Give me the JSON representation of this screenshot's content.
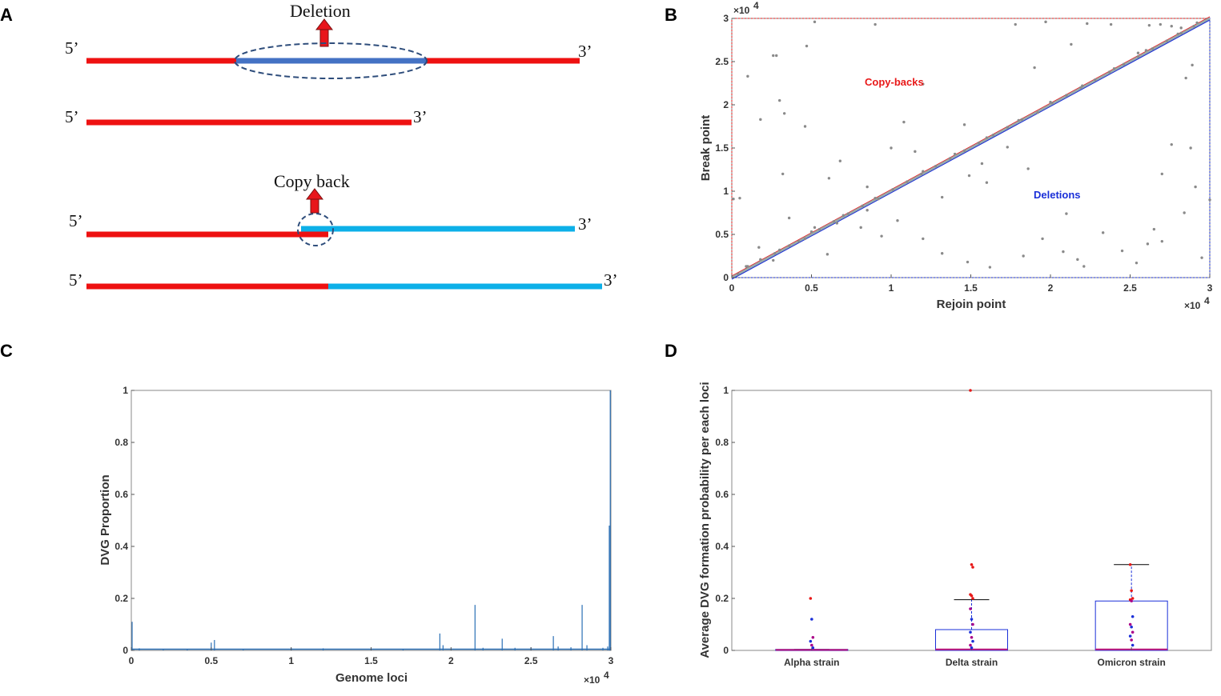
{
  "colors": {
    "red": "#ee1111",
    "blue_dark": "#4472c4",
    "blue_light": "#0db0e8",
    "arrow": "#e8151b",
    "dash": "#2e4d7b",
    "plot_blue": "#2a6fb5",
    "annot_red": "#e81818",
    "annot_blue": "#1a2fd8"
  },
  "panels": {
    "a": "A",
    "b": "B",
    "c": "C",
    "d": "D"
  },
  "schematic": {
    "deletion_title": "Deletion",
    "copyback_title": "Copy back",
    "five_prime": "5’",
    "three_prime": "3’"
  },
  "chart_data": [
    {
      "id": "B",
      "type": "scatter",
      "xlabel": "Rejoin point",
      "ylabel": "Break point",
      "xlim": [
        0,
        30000
      ],
      "ylim": [
        0,
        30000
      ],
      "x_ticks": [
        "0",
        "0.5",
        "1",
        "1.5",
        "2",
        "2.5",
        "3"
      ],
      "y_ticks": [
        "0",
        "0.5",
        "1",
        "1.5",
        "2",
        "2.5",
        "3"
      ],
      "x_tick_values": [
        0,
        5000,
        10000,
        15000,
        20000,
        25000,
        30000
      ],
      "y_tick_values": [
        0,
        5000,
        10000,
        15000,
        20000,
        25000,
        30000
      ],
      "exponent_label": "×10",
      "exponent_power": "4",
      "annotations": {
        "copy_backs": "Copy-backs",
        "deletions": "Deletions"
      },
      "points": [
        [
          400,
          400
        ],
        [
          900,
          1300
        ],
        [
          1800,
          2100
        ],
        [
          2700,
          2800
        ],
        [
          3600,
          3700
        ],
        [
          4600,
          4500
        ],
        [
          5500,
          5600
        ],
        [
          6400,
          6500
        ],
        [
          7300,
          7400
        ],
        [
          8200,
          8300
        ],
        [
          9200,
          9100
        ],
        [
          10100,
          10200
        ],
        [
          11000,
          11100
        ],
        [
          11900,
          12000
        ],
        [
          12800,
          12900
        ],
        [
          13700,
          13800
        ],
        [
          14600,
          14700
        ],
        [
          15500,
          15600
        ],
        [
          16400,
          16500
        ],
        [
          17300,
          17400
        ],
        [
          18200,
          18300
        ],
        [
          19200,
          19100
        ],
        [
          20100,
          20200
        ],
        [
          21000,
          21100
        ],
        [
          21900,
          22000
        ],
        [
          22800,
          22900
        ],
        [
          23700,
          23800
        ],
        [
          24600,
          24700
        ],
        [
          25500,
          25600
        ],
        [
          26400,
          26500
        ],
        [
          27300,
          27400
        ],
        [
          28200,
          28300
        ],
        [
          29000,
          29100
        ],
        [
          1000,
          1300
        ],
        [
          3000,
          3200
        ],
        [
          5000,
          5300
        ],
        [
          7000,
          7200
        ],
        [
          9000,
          9200
        ],
        [
          12000,
          12300
        ],
        [
          14000,
          14300
        ],
        [
          16000,
          16200
        ],
        [
          18000,
          18200
        ],
        [
          20000,
          20300
        ],
        [
          22000,
          22200
        ],
        [
          24000,
          24200
        ],
        [
          26000,
          26300
        ],
        [
          28000,
          28200
        ],
        [
          100,
          9100
        ],
        [
          500,
          9200
        ],
        [
          1000,
          23300
        ],
        [
          1800,
          18300
        ],
        [
          2600,
          25700
        ],
        [
          2800,
          25700
        ],
        [
          3000,
          20500
        ],
        [
          3300,
          19000
        ],
        [
          4600,
          17500
        ],
        [
          4700,
          26800
        ],
        [
          5200,
          29600
        ],
        [
          6100,
          11500
        ],
        [
          6800,
          13500
        ],
        [
          8500,
          10500
        ],
        [
          9000,
          29300
        ],
        [
          10000,
          15000
        ],
        [
          10800,
          18000
        ],
        [
          11500,
          14600
        ],
        [
          12000,
          22400
        ],
        [
          13200,
          9300
        ],
        [
          14600,
          17700
        ],
        [
          15700,
          13200
        ],
        [
          16000,
          11000
        ],
        [
          17300,
          15100
        ],
        [
          17800,
          29300
        ],
        [
          19000,
          24300
        ],
        [
          19700,
          29600
        ],
        [
          21300,
          27000
        ],
        [
          22300,
          29400
        ],
        [
          23800,
          29300
        ],
        [
          25500,
          26000
        ],
        [
          26200,
          29200
        ],
        [
          26900,
          29300
        ],
        [
          27600,
          29100
        ],
        [
          28200,
          28900
        ],
        [
          28500,
          23100
        ],
        [
          28900,
          24600
        ],
        [
          29200,
          29500
        ],
        [
          1700,
          3500
        ],
        [
          2600,
          2000
        ],
        [
          3200,
          12000
        ],
        [
          3600,
          6900
        ],
        [
          4200,
          4200
        ],
        [
          5200,
          5800
        ],
        [
          6000,
          2700
        ],
        [
          6600,
          6300
        ],
        [
          8100,
          5800
        ],
        [
          8500,
          7800
        ],
        [
          9400,
          4800
        ],
        [
          10400,
          6600
        ],
        [
          12000,
          4500
        ],
        [
          13200,
          2800
        ],
        [
          14800,
          1800
        ],
        [
          16200,
          1200
        ],
        [
          18300,
          2500
        ],
        [
          19500,
          4500
        ],
        [
          20800,
          3000
        ],
        [
          21700,
          2100
        ],
        [
          22100,
          1300
        ],
        [
          23300,
          5200
        ],
        [
          24500,
          3100
        ],
        [
          25400,
          1700
        ],
        [
          26100,
          3900
        ],
        [
          27000,
          12000
        ],
        [
          27600,
          15400
        ],
        [
          28400,
          7500
        ],
        [
          29100,
          10500
        ],
        [
          29500,
          2300
        ],
        [
          30000,
          9000
        ],
        [
          14900,
          11800
        ],
        [
          18600,
          12600
        ],
        [
          21000,
          7400
        ],
        [
          26500,
          5600
        ],
        [
          27000,
          4200
        ],
        [
          28800,
          15000
        ]
      ]
    },
    {
      "id": "C",
      "type": "bar",
      "xlabel": "Genome loci",
      "ylabel": "DVG Proportion",
      "xlim": [
        0,
        30000
      ],
      "ylim": [
        0,
        1
      ],
      "x_ticks": [
        "0",
        "0.5",
        "1",
        "1.5",
        "2",
        "2.5",
        "3"
      ],
      "y_ticks": [
        "0",
        "0.2",
        "0.4",
        "0.6",
        "0.8",
        "1"
      ],
      "x_tick_values": [
        0,
        5000,
        10000,
        15000,
        20000,
        25000,
        30000
      ],
      "y_tick_values": [
        0,
        0.2,
        0.4,
        0.6,
        0.8,
        1
      ],
      "exponent_label": "×10",
      "exponent_power": "4",
      "spikes": [
        [
          50,
          0.11
        ],
        [
          500,
          0.008
        ],
        [
          2000,
          0.005
        ],
        [
          3500,
          0.006
        ],
        [
          5000,
          0.03
        ],
        [
          5200,
          0.04
        ],
        [
          7000,
          0.005
        ],
        [
          10000,
          0.01
        ],
        [
          12000,
          0.008
        ],
        [
          15000,
          0.006
        ],
        [
          17000,
          0.005
        ],
        [
          19300,
          0.065
        ],
        [
          19500,
          0.02
        ],
        [
          21500,
          0.175
        ],
        [
          22000,
          0.01
        ],
        [
          23200,
          0.045
        ],
        [
          24000,
          0.01
        ],
        [
          25000,
          0.012
        ],
        [
          26400,
          0.055
        ],
        [
          26700,
          0.015
        ],
        [
          27500,
          0.012
        ],
        [
          28200,
          0.175
        ],
        [
          28500,
          0.02
        ],
        [
          29500,
          0.01
        ],
        [
          29800,
          0.015
        ],
        [
          29900,
          0.48
        ],
        [
          29960,
          1.0
        ]
      ]
    },
    {
      "id": "D",
      "type": "box",
      "xlabel": "",
      "ylabel": "Average DVG formation probability per each loci",
      "ylim": [
        0,
        1
      ],
      "y_ticks": [
        "0",
        "0.2",
        "0.4",
        "0.6",
        "0.8",
        "1"
      ],
      "y_tick_values": [
        0,
        0.2,
        0.4,
        0.6,
        0.8,
        1
      ],
      "categories": [
        "Alpha strain",
        "Delta strain",
        "Omicron strain"
      ],
      "boxes": [
        {
          "q1": 0.0,
          "median": 0.002,
          "q3": 0.004,
          "whisker_low": 0.0,
          "whisker_high": 0.004
        },
        {
          "q1": 0.0,
          "median": 0.004,
          "q3": 0.08,
          "whisker_low": 0.0,
          "whisker_high": 0.195
        },
        {
          "q1": 0.0,
          "median": 0.004,
          "q3": 0.19,
          "whisker_low": 0.0,
          "whisker_high": 0.33
        }
      ],
      "outliers": [
        [
          0.2,
          0.12,
          0.05,
          0.035,
          0.02,
          0.01
        ],
        [
          1.0,
          0.33,
          0.32,
          0.215,
          0.21,
          0.2,
          0.16,
          0.12,
          0.1,
          0.07,
          0.05,
          0.035,
          0.02,
          0.01
        ],
        [
          0.33,
          0.23,
          0.2,
          0.195,
          0.19,
          0.13,
          0.1,
          0.09,
          0.07,
          0.055,
          0.04,
          0.02
        ]
      ]
    }
  ]
}
